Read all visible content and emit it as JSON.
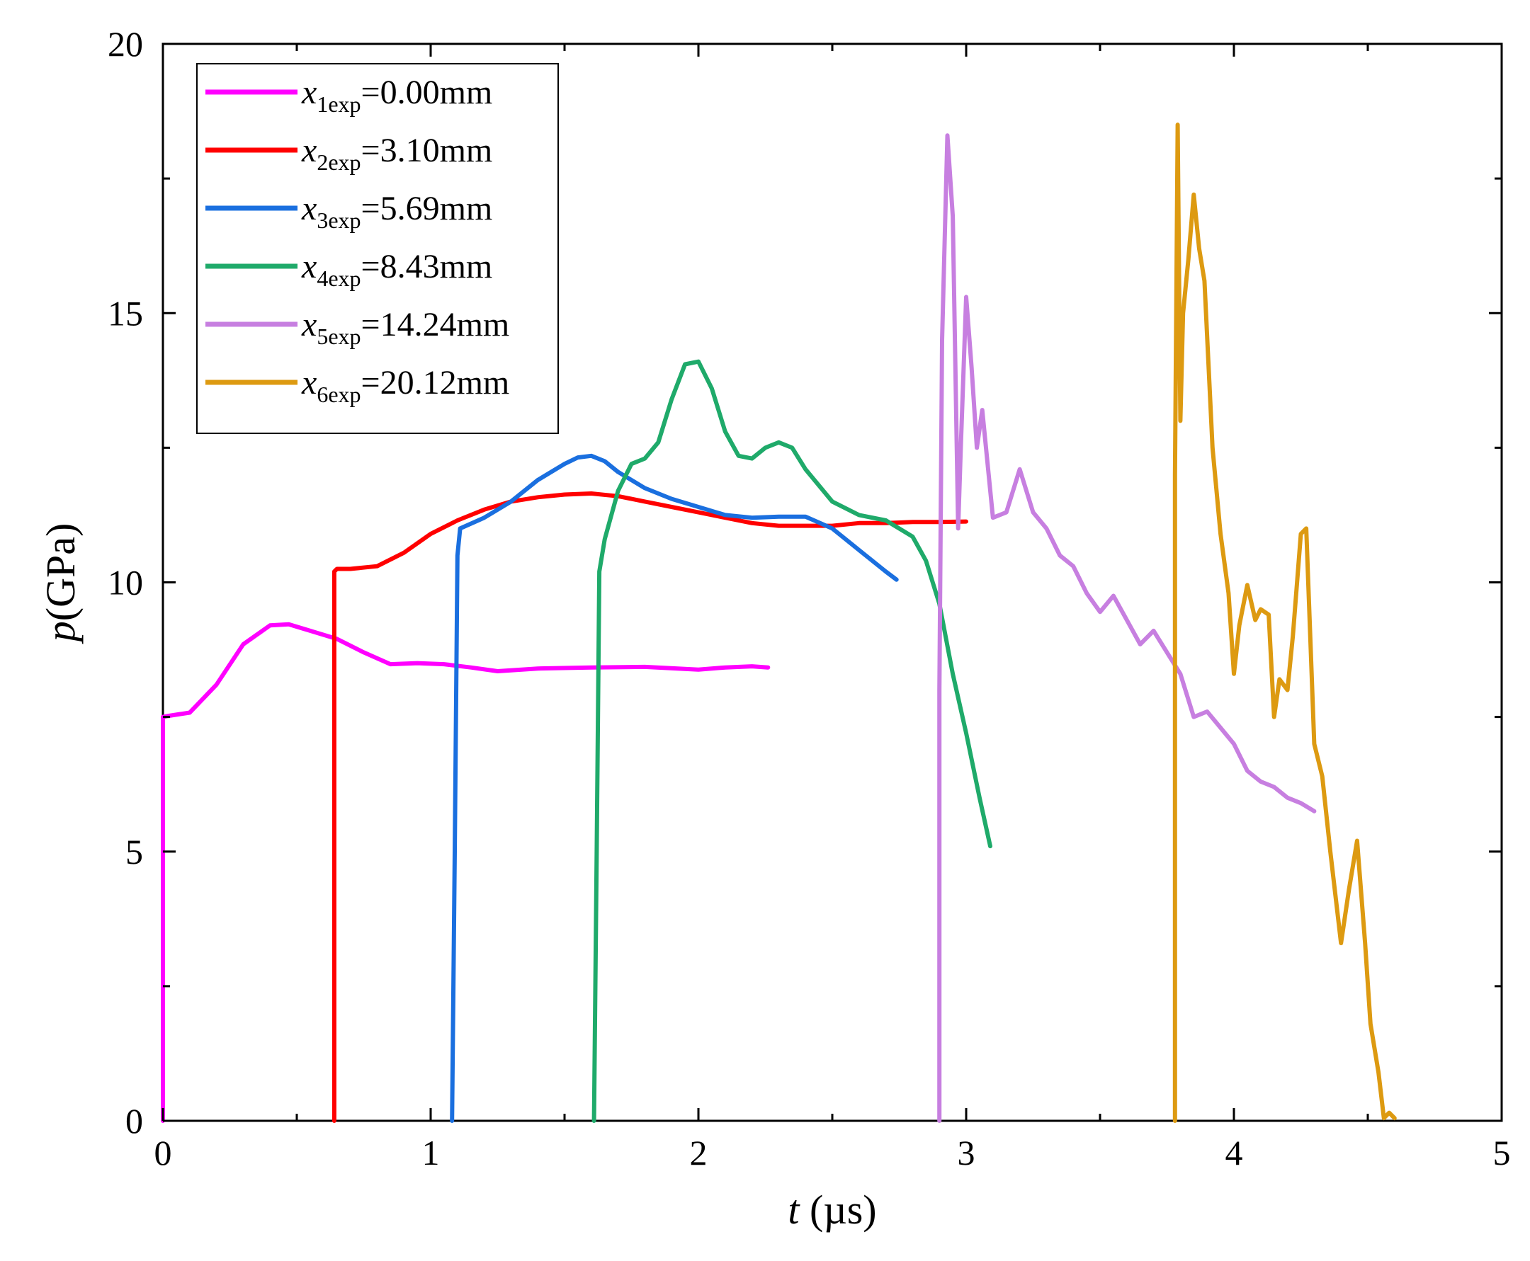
{
  "chart_data": {
    "type": "line",
    "title": "",
    "xlabel": {
      "var": "t",
      "unit": " (µs)"
    },
    "ylabel": {
      "var": "p",
      "unit": "(GPa)"
    },
    "xlim": [
      0,
      5
    ],
    "ylim": [
      0,
      20
    ],
    "xticks": [
      0,
      1,
      2,
      3,
      4,
      5
    ],
    "yticks": [
      0,
      5,
      10,
      15,
      20
    ],
    "grid": false,
    "legend_position": "top-left",
    "series": [
      {
        "name": "x1exp=0.00mm",
        "label": {
          "var": "x",
          "sub": "1exp",
          "rest": "=0.00mm"
        },
        "color": "#ff00ff",
        "x": [
          0.0,
          0.0,
          0.02,
          0.1,
          0.2,
          0.3,
          0.4,
          0.47,
          0.55,
          0.65,
          0.75,
          0.85,
          0.95,
          1.05,
          1.15,
          1.25,
          1.4,
          1.6,
          1.8,
          2.0,
          2.1,
          2.2,
          2.26
        ],
        "y": [
          0.0,
          7.5,
          7.52,
          7.58,
          8.1,
          8.85,
          9.2,
          9.22,
          9.1,
          8.95,
          8.7,
          8.48,
          8.5,
          8.48,
          8.42,
          8.35,
          8.4,
          8.42,
          8.43,
          8.38,
          8.42,
          8.44,
          8.42
        ]
      },
      {
        "name": "x2exp=3.10mm",
        "label": {
          "var": "x",
          "sub": "2exp",
          "rest": "=3.10mm"
        },
        "color": "#ff0000",
        "x": [
          0.64,
          0.64,
          0.65,
          0.7,
          0.8,
          0.9,
          1.0,
          1.1,
          1.2,
          1.3,
          1.4,
          1.5,
          1.6,
          1.7,
          1.8,
          1.9,
          2.0,
          2.1,
          2.2,
          2.3,
          2.4,
          2.5,
          2.6,
          2.7,
          2.8,
          2.9,
          3.0
        ],
        "y": [
          0.0,
          10.2,
          10.25,
          10.25,
          10.3,
          10.55,
          10.9,
          11.15,
          11.35,
          11.5,
          11.58,
          11.63,
          11.65,
          11.6,
          11.5,
          11.4,
          11.3,
          11.2,
          11.1,
          11.05,
          11.05,
          11.05,
          11.1,
          11.1,
          11.12,
          11.12,
          11.13
        ]
      },
      {
        "name": "x3exp=5.69mm",
        "label": {
          "var": "x",
          "sub": "3exp",
          "rest": "=5.69mm"
        },
        "color": "#1a6fdf",
        "x": [
          1.08,
          1.09,
          1.1,
          1.11,
          1.2,
          1.3,
          1.4,
          1.5,
          1.55,
          1.6,
          1.65,
          1.7,
          1.8,
          1.9,
          2.0,
          2.1,
          2.2,
          2.3,
          2.4,
          2.5,
          2.6,
          2.7,
          2.74
        ],
        "y": [
          0.0,
          5.0,
          10.5,
          11.0,
          11.2,
          11.5,
          11.9,
          12.2,
          12.32,
          12.35,
          12.25,
          12.05,
          11.75,
          11.55,
          11.4,
          11.25,
          11.2,
          11.22,
          11.22,
          11.0,
          10.6,
          10.2,
          10.05
        ]
      },
      {
        "name": "x4exp=8.43mm",
        "label": {
          "var": "x",
          "sub": "4exp",
          "rest": "=8.43mm"
        },
        "color": "#1faa6a",
        "x": [
          1.61,
          1.62,
          1.63,
          1.65,
          1.7,
          1.75,
          1.8,
          1.85,
          1.9,
          1.95,
          2.0,
          2.05,
          2.1,
          2.15,
          2.2,
          2.25,
          2.3,
          2.35,
          2.4,
          2.5,
          2.6,
          2.7,
          2.8,
          2.85,
          2.9,
          2.95,
          3.0,
          3.05,
          3.09
        ],
        "y": [
          0.0,
          5.0,
          10.2,
          10.8,
          11.7,
          12.2,
          12.3,
          12.6,
          13.4,
          14.05,
          14.1,
          13.6,
          12.8,
          12.35,
          12.3,
          12.5,
          12.6,
          12.5,
          12.1,
          11.5,
          11.25,
          11.15,
          10.85,
          10.4,
          9.6,
          8.3,
          7.2,
          6.0,
          5.1
        ]
      },
      {
        "name": "x5exp=14.24mm",
        "label": {
          "var": "x",
          "sub": "5exp",
          "rest": "=14.24mm"
        },
        "color": "#c77fe0",
        "x": [
          2.9,
          2.9,
          2.91,
          2.93,
          2.95,
          2.97,
          2.98,
          3.0,
          3.02,
          3.04,
          3.06,
          3.1,
          3.15,
          3.2,
          3.25,
          3.3,
          3.35,
          3.4,
          3.45,
          3.5,
          3.55,
          3.6,
          3.65,
          3.7,
          3.75,
          3.8,
          3.85,
          3.9,
          3.95,
          4.0,
          4.05,
          4.1,
          4.15,
          4.2,
          4.25,
          4.3
        ],
        "y": [
          0.0,
          8.0,
          14.5,
          18.3,
          16.8,
          11.0,
          12.5,
          15.3,
          14.0,
          12.5,
          13.2,
          11.2,
          11.3,
          12.1,
          11.3,
          11.0,
          10.5,
          10.3,
          9.8,
          9.45,
          9.75,
          9.3,
          8.85,
          9.1,
          8.7,
          8.3,
          7.5,
          7.6,
          7.3,
          7.0,
          6.5,
          6.3,
          6.2,
          6.0,
          5.9,
          5.75
        ]
      },
      {
        "name": "x6exp=20.12mm",
        "label": {
          "var": "x",
          "sub": "6exp",
          "rest": "=20.12mm"
        },
        "color": "#dd9a11",
        "x": [
          3.78,
          3.78,
          3.79,
          3.8,
          3.81,
          3.83,
          3.85,
          3.87,
          3.89,
          3.92,
          3.95,
          3.98,
          4.0,
          4.02,
          4.05,
          4.08,
          4.1,
          4.13,
          4.15,
          4.17,
          4.2,
          4.22,
          4.25,
          4.27,
          4.3,
          4.33,
          4.36,
          4.4,
          4.43,
          4.46,
          4.49,
          4.51,
          4.54,
          4.56,
          4.58,
          4.6
        ],
        "y": [
          0.0,
          12.0,
          18.5,
          13.0,
          15.0,
          16.0,
          17.2,
          16.2,
          15.6,
          12.5,
          10.9,
          9.8,
          8.3,
          9.2,
          9.95,
          9.3,
          9.5,
          9.4,
          7.5,
          8.2,
          8.0,
          9.0,
          10.9,
          11.0,
          7.0,
          6.4,
          5.0,
          3.3,
          4.3,
          5.2,
          3.3,
          1.8,
          0.9,
          0.05,
          0.15,
          0.05
        ]
      }
    ]
  }
}
